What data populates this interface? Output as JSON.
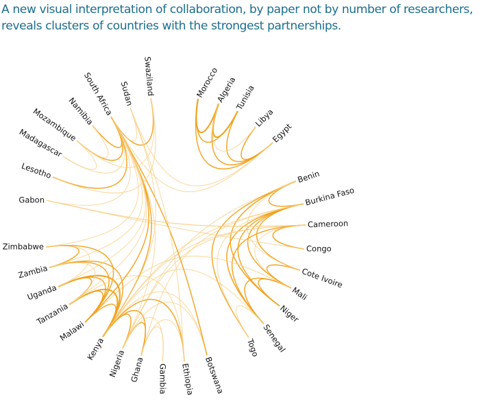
{
  "headline": {
    "line1": "A new visual interpretation of collaboration, by paper not by number of researchers,",
    "line2": "reveals clusters of countries with the strongest partnerships."
  },
  "colors": {
    "strong": "#f0a21c",
    "weak": "#f8cf85",
    "text": "#1c6e8c"
  },
  "countries": [
    "Morocco",
    "Algeria",
    "Tunisia",
    "Libya",
    "Egypt",
    "Benin",
    "Burkina Faso",
    "Cameroon",
    "Congo",
    "Cote Ivoire",
    "Mali",
    "Niger",
    "Senegal",
    "Togo",
    "Botswana",
    "Ethiopia",
    "Gambia",
    "Ghana",
    "Nigeria",
    "Kenya",
    "Malawi",
    "Tanzania",
    "Uganda",
    "Zambia",
    "Zimbabwe",
    "Gabon",
    "Lesotho",
    "Madagascar",
    "Mozambique",
    "Namibia",
    "South Africa",
    "Sudan",
    "Swaziland"
  ],
  "links": [
    [
      "Morocco",
      "Algeria",
      3
    ],
    [
      "Morocco",
      "Tunisia",
      2
    ],
    [
      "Morocco",
      "Egypt",
      2
    ],
    [
      "Algeria",
      "Tunisia",
      3
    ],
    [
      "Algeria",
      "Egypt",
      2
    ],
    [
      "Tunisia",
      "Egypt",
      2
    ],
    [
      "Libya",
      "Egypt",
      2
    ],
    [
      "Algeria",
      "Libya",
      1
    ],
    [
      "Egypt",
      "South Africa",
      1
    ],
    [
      "Egypt",
      "Sudan",
      1
    ],
    [
      "Benin",
      "Burkina Faso",
      2
    ],
    [
      "Benin",
      "Niger",
      2
    ],
    [
      "Benin",
      "Togo",
      2
    ],
    [
      "Burkina Faso",
      "Mali",
      2
    ],
    [
      "Burkina Faso",
      "Niger",
      2
    ],
    [
      "Burkina Faso",
      "Cote Ivoire",
      2
    ],
    [
      "Cameroon",
      "Congo",
      2
    ],
    [
      "Cameroon",
      "Mali",
      1
    ],
    [
      "Cameroon",
      "Senegal",
      2
    ],
    [
      "Cote Ivoire",
      "Mali",
      2
    ],
    [
      "Senegal",
      "Mali",
      2
    ],
    [
      "Senegal",
      "Togo",
      1
    ],
    [
      "Congo",
      "Gabon",
      1
    ],
    [
      "Cameroon",
      "Gabon",
      1
    ],
    [
      "Niger",
      "Mali",
      2
    ],
    [
      "Burkina Faso",
      "Senegal",
      2
    ],
    [
      "Benin",
      "Cote Ivoire",
      1
    ],
    [
      "Togo",
      "Burkina Faso",
      1
    ],
    [
      "Cameroon",
      "Kenya",
      1
    ],
    [
      "Senegal",
      "Kenya",
      1
    ],
    [
      "Benin",
      "Nigeria",
      1
    ],
    [
      "Cameroon",
      "Nigeria",
      1
    ],
    [
      "Burkina Faso",
      "Ghana",
      1
    ],
    [
      "Burkina Faso",
      "Kenya",
      1
    ],
    [
      "Mali",
      "Malawi",
      1
    ],
    [
      "Kenya",
      "Tanzania",
      3
    ],
    [
      "Kenya",
      "Uganda",
      3
    ],
    [
      "Kenya",
      "Ethiopia",
      2
    ],
    [
      "Kenya",
      "Malawi",
      2
    ],
    [
      "Kenya",
      "Nigeria",
      2
    ],
    [
      "Kenya",
      "Zambia",
      2
    ],
    [
      "Kenya",
      "Botswana",
      1
    ],
    [
      "Kenya",
      "Ghana",
      2
    ],
    [
      "Tanzania",
      "Uganda",
      2
    ],
    [
      "Tanzania",
      "Malawi",
      2
    ],
    [
      "Malawi",
      "Zambia",
      2
    ],
    [
      "Malawi",
      "Zimbabwe",
      2
    ],
    [
      "Malawi",
      "Uganda",
      2
    ],
    [
      "Zambia",
      "Zimbabwe",
      2
    ],
    [
      "Nigeria",
      "Ghana",
      2
    ],
    [
      "Ghana",
      "Gambia",
      1
    ],
    [
      "Nigeria",
      "Gambia",
      1
    ],
    [
      "Ghana",
      "Ethiopia",
      1
    ],
    [
      "Nigeria",
      "Botswana",
      1
    ],
    [
      "Uganda",
      "Zimbabwe",
      1
    ],
    [
      "Tanzania",
      "Zambia",
      1
    ],
    [
      "Tanzania",
      "Ethiopia",
      1
    ],
    [
      "South Africa",
      "Botswana",
      2
    ],
    [
      "South Africa",
      "Kenya",
      2
    ],
    [
      "South Africa",
      "Malawi",
      2
    ],
    [
      "South Africa",
      "Zimbabwe",
      1
    ],
    [
      "South Africa",
      "Zambia",
      1
    ],
    [
      "South Africa",
      "Tanzania",
      1
    ],
    [
      "South Africa",
      "Uganda",
      1
    ],
    [
      "South Africa",
      "Nigeria",
      1
    ],
    [
      "South Africa",
      "Namibia",
      2
    ],
    [
      "South Africa",
      "Mozambique",
      2
    ],
    [
      "South Africa",
      "Madagascar",
      1
    ],
    [
      "South Africa",
      "Lesotho",
      2
    ],
    [
      "South Africa",
      "Gabon",
      1
    ],
    [
      "South Africa",
      "Swaziland",
      2
    ],
    [
      "South Africa",
      "Sudan",
      1
    ],
    [
      "Namibia",
      "Mozambique",
      1
    ],
    [
      "Lesotho",
      "Swaziland",
      1
    ],
    [
      "Madagascar",
      "Mozambique",
      1
    ],
    [
      "Sudan",
      "Ethiopia",
      1
    ],
    [
      "Sudan",
      "Kenya",
      1
    ],
    [
      "Gabon",
      "Cameroon",
      1
    ],
    [
      "Swaziland",
      "Mozambique",
      1
    ]
  ]
}
